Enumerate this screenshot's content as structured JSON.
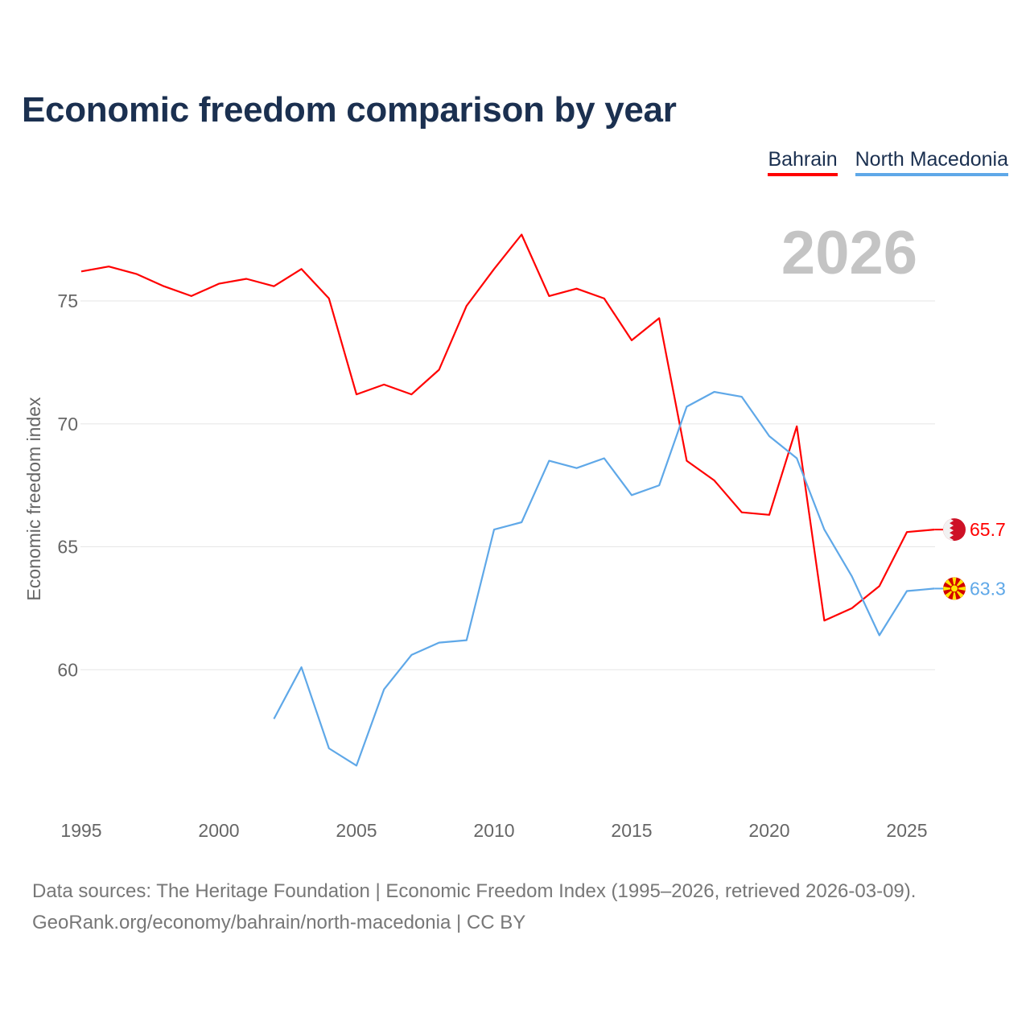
{
  "chart_data": {
    "type": "line",
    "title": "Economic freedom comparison by year",
    "ylabel": "Economic freedom index",
    "xlabel": "",
    "year_watermark": "2026",
    "xlim": [
      1995,
      2026
    ],
    "ylim": [
      56,
      78
    ],
    "x_ticks": [
      1995,
      2000,
      2005,
      2010,
      2015,
      2020,
      2025
    ],
    "y_ticks": [
      60,
      65,
      70,
      75
    ],
    "grid": true,
    "legend_position": "top-right",
    "series": [
      {
        "name": "Bahrain",
        "color": "#ff0000",
        "end_label": "65.7",
        "x": [
          1995,
          1996,
          1997,
          1998,
          1999,
          2000,
          2001,
          2002,
          2003,
          2004,
          2005,
          2006,
          2007,
          2008,
          2009,
          2010,
          2011,
          2012,
          2013,
          2014,
          2015,
          2016,
          2017,
          2018,
          2019,
          2020,
          2021,
          2022,
          2023,
          2024,
          2025,
          2026
        ],
        "values": [
          76.2,
          76.4,
          76.1,
          75.6,
          75.2,
          75.7,
          75.9,
          75.6,
          76.3,
          75.1,
          71.2,
          71.6,
          71.2,
          72.2,
          74.8,
          76.3,
          77.7,
          75.2,
          75.5,
          75.1,
          73.4,
          74.3,
          68.5,
          67.7,
          66.4,
          66.3,
          69.9,
          62.0,
          62.5,
          63.4,
          65.6,
          65.7
        ]
      },
      {
        "name": "North Macedonia",
        "color": "#5fa8e8",
        "end_label": "63.3",
        "x": [
          2002,
          2003,
          2004,
          2005,
          2006,
          2007,
          2008,
          2009,
          2010,
          2011,
          2012,
          2013,
          2014,
          2015,
          2016,
          2017,
          2018,
          2019,
          2020,
          2021,
          2022,
          2023,
          2024,
          2025,
          2026
        ],
        "values": [
          58.0,
          60.1,
          56.8,
          56.1,
          59.2,
          60.6,
          61.1,
          61.2,
          65.7,
          66.0,
          68.5,
          68.2,
          68.6,
          67.1,
          67.5,
          70.7,
          71.3,
          71.1,
          69.5,
          68.6,
          65.7,
          63.8,
          61.4,
          63.2,
          63.3
        ]
      }
    ]
  },
  "footer": {
    "line1": "Data sources: The Heritage Foundation | Economic Freedom Index (1995–2026, retrieved 2026-03-09).",
    "line2": "GeoRank.org/economy/bahrain/north-macedonia | CC BY"
  }
}
